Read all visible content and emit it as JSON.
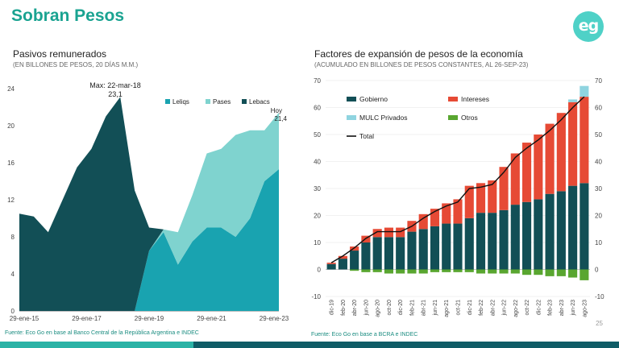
{
  "header": {
    "title": "Sobran Pesos",
    "logo_text": "eg"
  },
  "page_number": "25",
  "footer": {
    "left": "Fuente: Eco Go en base al Banco Central de la República Argentina e INDEC",
    "right": "Fuente: Eco Go en base a BCRA e INDEC"
  },
  "colors": {
    "brand": "#1aa391",
    "leliqs": "#19a3b0",
    "pases": "#7fd3cf",
    "lebacs": "#124f56",
    "gobierno": "#124f56",
    "intereses": "#e64a35",
    "mulc": "#8fd4e0",
    "otros": "#59a630",
    "total": "#111111"
  },
  "left_panel": {
    "title": "Pasivos remunerados",
    "subtitle": "(EN BILLONES DE PESOS, 20 DÍAS M.M.)"
  },
  "right_panel": {
    "title": "Factores de expansión de pesos de la economía",
    "subtitle": "(ACUMULADO EN BILLONES DE PESOS CONSTANTES, AL 26-SEP-23)"
  },
  "chart_data": [
    {
      "type": "area",
      "stacked": true,
      "title": "Pasivos remunerados",
      "subtitle": "(EN BILLONES DE PESOS, 20 DÍAS M.M.)",
      "x_tick_labels": [
        "29-ene-15",
        "29-ene-17",
        "29-ene-19",
        "29-ene-21",
        "29-ene-23"
      ],
      "y_ticks": [
        "0",
        "4",
        "8",
        "12",
        "16",
        "20",
        "24"
      ],
      "ylim": [
        0,
        24
      ],
      "legend_position": "top-right",
      "x": [
        "ene-15",
        "jul-15",
        "ene-16",
        "jul-16",
        "ene-17",
        "jun-17",
        "nov-17",
        "mar-18",
        "jul-18",
        "ene-19",
        "jul-19",
        "ene-20",
        "jul-20",
        "ene-21",
        "jul-21",
        "ene-22",
        "jul-22",
        "ene-23",
        "sep-23"
      ],
      "series": [
        {
          "name": "Lebacs",
          "values": [
            10.5,
            10.2,
            8.5,
            12.0,
            15.5,
            17.5,
            21.0,
            23.1,
            13.0,
            2.5,
            0,
            0,
            0,
            0,
            0,
            0,
            0,
            0,
            0
          ]
        },
        {
          "name": "Leliqs",
          "values": [
            0,
            0,
            0,
            0,
            0,
            0,
            0,
            0,
            0,
            6.5,
            8.5,
            5.0,
            7.5,
            9.0,
            9.0,
            8.0,
            10.0,
            14.0,
            15.3
          ]
        },
        {
          "name": "Pases",
          "values": [
            0,
            0,
            0,
            0,
            0,
            0,
            0,
            0,
            0,
            0,
            0.3,
            3.5,
            5.0,
            8.0,
            8.5,
            11.0,
            9.5,
            5.5,
            6.1
          ]
        }
      ],
      "annotations": [
        {
          "text": "Max: 22-mar-18",
          "text2": "23,1"
        },
        {
          "text": "Hoy",
          "text2": "21,4"
        }
      ]
    },
    {
      "type": "bar",
      "stacked": true,
      "title": "Factores de expansión de pesos de la economía",
      "subtitle": "(ACUMULADO EN BILLONES DE PESOS CONSTANTES, AL 26-SEP-23)",
      "categories": [
        "dic-19",
        "feb-20",
        "abr-20",
        "jun-20",
        "ago-20",
        "oct-20",
        "dic-20",
        "feb-21",
        "abr-21",
        "jun-21",
        "ago-21",
        "oct-21",
        "dic-21",
        "feb-22",
        "abr-22",
        "jun-22",
        "ago-22",
        "oct-22",
        "dic-22",
        "feb-23",
        "abr-23",
        "jun-23",
        "ago-23"
      ],
      "y_ticks": [
        "-10",
        "0",
        "10",
        "20",
        "30",
        "40",
        "50",
        "60",
        "70"
      ],
      "ylim": [
        -10,
        70
      ],
      "legend_position": "top-left",
      "series": [
        {
          "name": "Gobierno",
          "values": [
            2,
            4,
            7,
            10,
            12,
            12,
            12,
            14,
            15,
            16,
            17,
            17,
            19,
            21,
            21,
            22,
            24,
            25,
            26,
            28,
            29,
            31,
            32
          ]
        },
        {
          "name": "Intereses",
          "values": [
            0.5,
            1,
            1.5,
            2.5,
            3,
            3.5,
            3.5,
            4,
            5.5,
            6.5,
            7.5,
            9,
            12,
            11,
            12,
            16,
            19,
            22,
            24,
            26,
            29,
            31,
            32
          ]
        },
        {
          "name": "MULC Privados",
          "values": [
            0,
            0,
            0,
            0,
            0,
            0,
            0,
            0,
            0,
            0,
            0,
            0,
            0,
            0,
            0,
            0,
            0,
            0,
            0,
            0,
            0,
            1,
            4
          ]
        },
        {
          "name": "Otros",
          "values": [
            0,
            0,
            -0.5,
            -1,
            -1,
            -1.5,
            -1.5,
            -1.5,
            -1.5,
            -1,
            -1,
            -1,
            -1,
            -1.5,
            -1.5,
            -1.5,
            -1.5,
            -2,
            -2,
            -2.5,
            -2.5,
            -3,
            -4
          ]
        },
        {
          "name": "Total",
          "type": "line",
          "values": [
            2.5,
            5,
            8,
            11.5,
            14,
            14,
            14,
            16,
            19,
            21.5,
            23.5,
            25,
            30,
            30.5,
            31.5,
            36,
            41.5,
            45,
            48,
            51.5,
            55.5,
            60,
            64
          ]
        }
      ]
    }
  ]
}
